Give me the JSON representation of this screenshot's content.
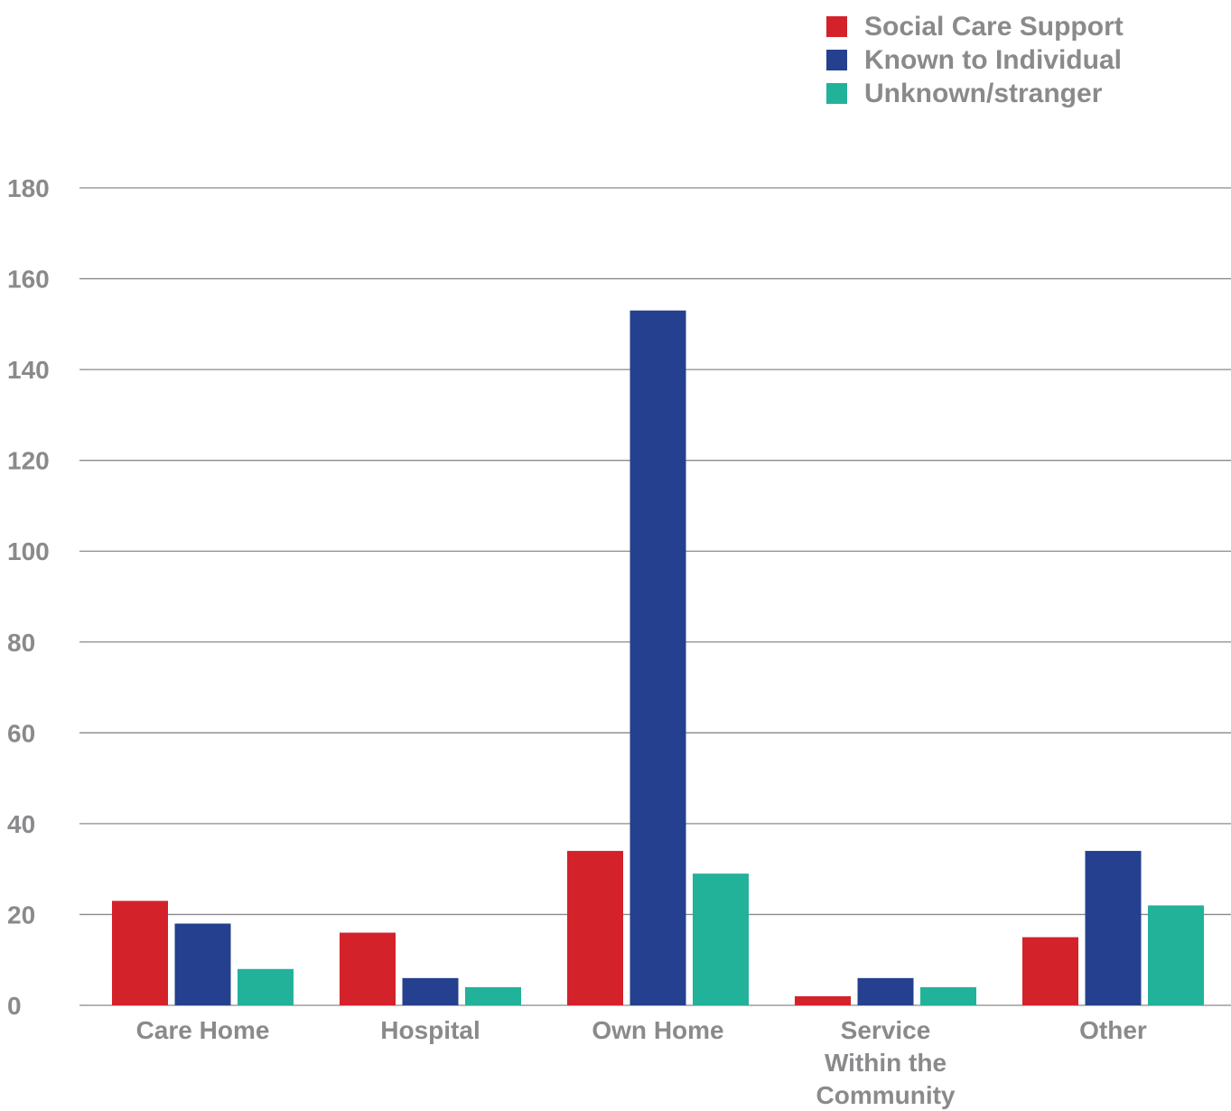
{
  "chart_data": {
    "type": "bar",
    "categories": [
      [
        "Care Home"
      ],
      [
        "Hospital"
      ],
      [
        "Own Home"
      ],
      [
        "Service",
        "Within the",
        "Community"
      ],
      [
        "Other"
      ]
    ],
    "category_names": [
      "Care Home",
      "Hospital",
      "Own Home",
      "Service Within the Community",
      "Other"
    ],
    "series": [
      {
        "name": "Social Care Support",
        "color": "#d3222a",
        "values": [
          23,
          16,
          34,
          2,
          15
        ]
      },
      {
        "name": "Known to Individual",
        "color": "#24408e",
        "values": [
          18,
          6,
          153,
          6,
          34
        ]
      },
      {
        "name": "Unknown/stranger",
        "color": "#22b29a",
        "values": [
          8,
          4,
          29,
          4,
          22
        ]
      }
    ],
    "title": "",
    "xlabel": "",
    "ylabel": "",
    "ylim": [
      0,
      180
    ],
    "yticks": [
      0,
      20,
      40,
      60,
      80,
      100,
      120,
      140,
      160,
      180
    ],
    "grid": true,
    "legend_position": "top-right"
  }
}
